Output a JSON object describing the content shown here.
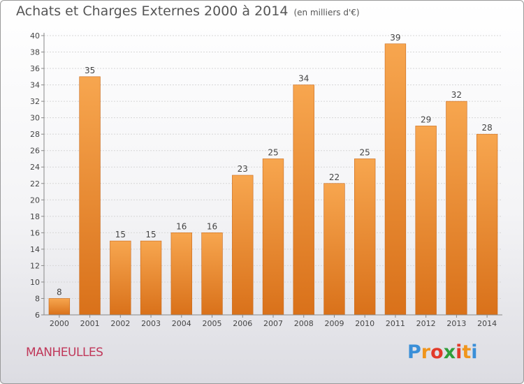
{
  "chart_data": {
    "type": "bar",
    "title": "Achats et Charges Externes 2000 à 2014",
    "unit": "(en milliers d'€)",
    "categories": [
      "2000",
      "2001",
      "2002",
      "2003",
      "2004",
      "2005",
      "2006",
      "2007",
      "2008",
      "2009",
      "2010",
      "2011",
      "2012",
      "2013",
      "2014"
    ],
    "values": [
      8,
      35,
      15,
      15,
      16,
      16,
      23,
      25,
      34,
      22,
      25,
      39,
      29,
      32,
      28
    ],
    "ylim": [
      6,
      40
    ],
    "yticks": [
      "6",
      "8",
      "10",
      "12",
      "14",
      "16",
      "18",
      "20",
      "22",
      "24",
      "26",
      "28",
      "30",
      "32",
      "34",
      "36",
      "38",
      "40"
    ],
    "grid": true,
    "bar_color_top": "#f7a64f",
    "bar_color_bottom": "#d9711a"
  },
  "footer": {
    "town": "MANHEULLES",
    "logo_letters": [
      "P",
      "r",
      "o",
      "x",
      "i",
      "t",
      "i"
    ],
    "logo_colors": [
      "#3a8fd8",
      "#f0951c",
      "#e23a2a",
      "#2f9e3a",
      "#e23a2a",
      "#f0951c",
      "#3a8fd8"
    ]
  }
}
